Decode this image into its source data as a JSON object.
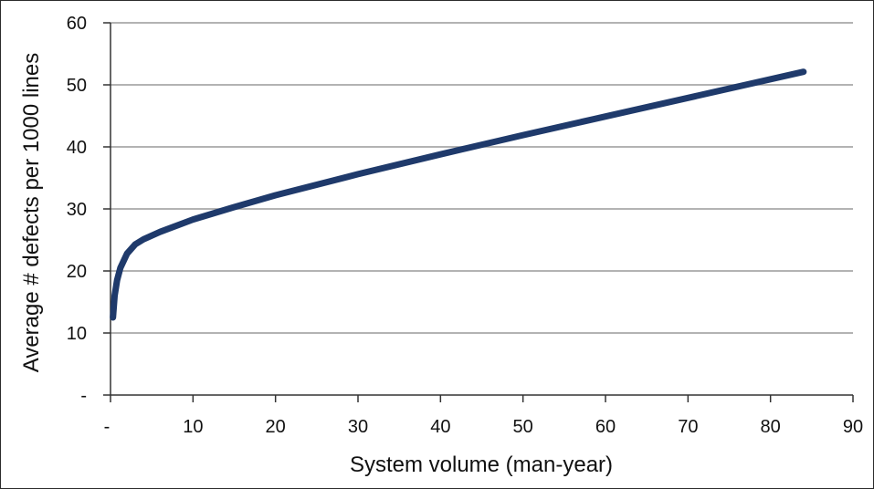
{
  "chart_data": {
    "type": "line",
    "title": "",
    "xlabel": "System volume (man-year)",
    "ylabel": "Average # defects per 1000 lines",
    "xlim": [
      0,
      90
    ],
    "ylim": [
      0,
      60
    ],
    "x_ticks": [
      0,
      10,
      20,
      30,
      40,
      50,
      60,
      70,
      80,
      90
    ],
    "x_tick_labels": [
      "-",
      "10",
      "20",
      "30",
      "40",
      "50",
      "60",
      "70",
      "80",
      "90"
    ],
    "y_ticks": [
      0,
      10,
      20,
      30,
      40,
      50,
      60
    ],
    "y_tick_labels": [
      "-",
      "10",
      "20",
      "30",
      "40",
      "50",
      "60"
    ],
    "grid": "horizontal",
    "legend": "none",
    "series": [
      {
        "color": "#1f3a6b",
        "points": [
          {
            "x": 0.3,
            "y": 12.5
          },
          {
            "x": 0.5,
            "y": 16
          },
          {
            "x": 0.8,
            "y": 18.5
          },
          {
            "x": 1.2,
            "y": 20.5
          },
          {
            "x": 2,
            "y": 22.8
          },
          {
            "x": 3,
            "y": 24.3
          },
          {
            "x": 4,
            "y": 25.1
          },
          {
            "x": 6,
            "y": 26.3
          },
          {
            "x": 10,
            "y": 28.3
          },
          {
            "x": 15,
            "y": 30.3
          },
          {
            "x": 20,
            "y": 32.2
          },
          {
            "x": 30,
            "y": 35.6
          },
          {
            "x": 40,
            "y": 38.8
          },
          {
            "x": 50,
            "y": 41.9
          },
          {
            "x": 60,
            "y": 44.9
          },
          {
            "x": 70,
            "y": 47.9
          },
          {
            "x": 84,
            "y": 52.1
          }
        ]
      }
    ]
  }
}
